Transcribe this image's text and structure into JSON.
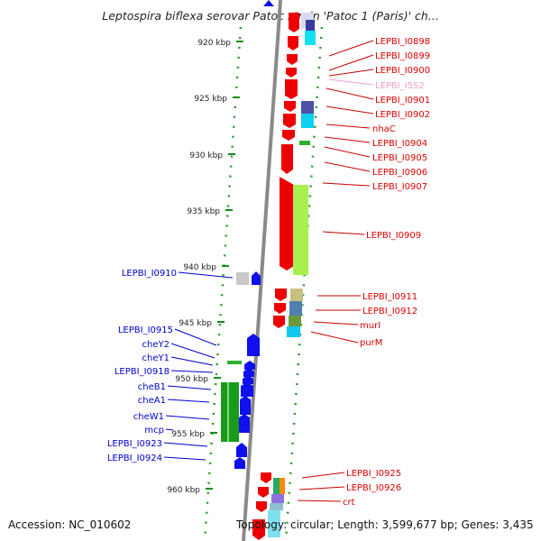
{
  "title": "Leptospira biflexa serovar Patoc strain 'Patoc 1 (Paris)' ch...",
  "accession": "Accession: NC_010602",
  "topology": "Topology: circular; Length: 3,599,677 bp; Genes: 3,435",
  "scale_labels": [
    "920 kbp",
    "925 kbp",
    "930 kbp",
    "935 kbp",
    "940 kbp",
    "945 kbp",
    "950 kbp",
    "955 kbp",
    "960 kbp"
  ],
  "right_labels": [
    "LEPBI_I0898",
    "LEPBI_I0899",
    "LEPBI_I0900",
    "LEPBI_I5S2",
    "LEPBI_I0901",
    "LEPBI_I0902",
    "nhaC",
    "LEPBI_I0904",
    "LEPBI_I0905",
    "LEPBI_I0906",
    "LEPBI_I0907",
    "LEPBI_I0909",
    "LEPBI_I0911",
    "LEPBI_I0912",
    "murI",
    "purM",
    "LEPBI_I0925",
    "LEPBI_I0926",
    "crt"
  ],
  "left_labels": [
    "LEPBI_I0910",
    "LEPBI_I0915",
    "cheY2",
    "cheY1",
    "LEPBI_I0918",
    "cheB1",
    "cheA1",
    "cheW1",
    "mcp",
    "LEPBI_I0923",
    "LEPBI_I0924"
  ],
  "colors": {
    "forward_gene": "#ee0000",
    "reverse_gene": "#1010ee",
    "rna_label": "#f0a0d0",
    "green_track": "#1a8a1a",
    "backbone": "#888888"
  }
}
